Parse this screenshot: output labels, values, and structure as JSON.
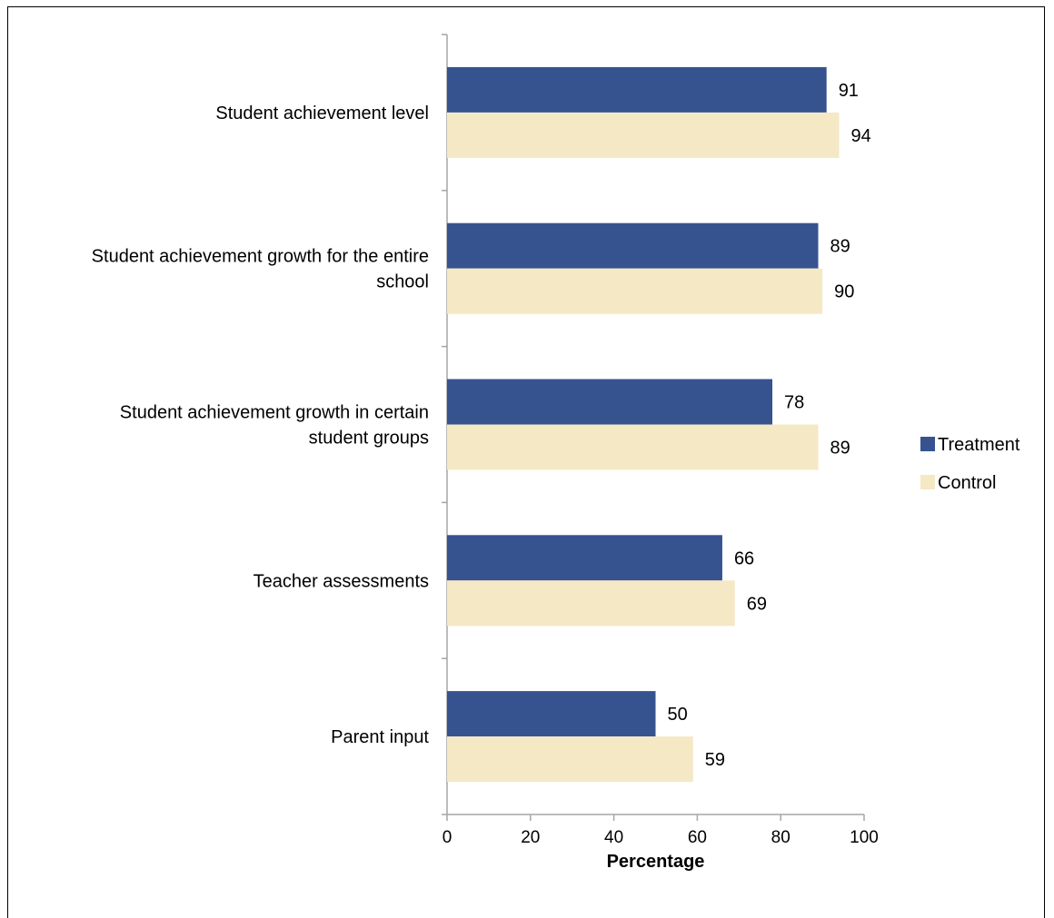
{
  "chart_data": {
    "type": "bar",
    "orientation": "horizontal",
    "categories": [
      [
        "Student achievement level"
      ],
      [
        "Student achievement growth for the entire",
        "school"
      ],
      [
        "Student achievement growth in certain",
        "student groups"
      ],
      [
        "Teacher assessments"
      ],
      [
        "Parent input"
      ]
    ],
    "series": [
      {
        "name": "Treatment",
        "color": "#36538f",
        "values": [
          91,
          89,
          78,
          66,
          50
        ]
      },
      {
        "name": "Control",
        "color": "#f5e8c4",
        "values": [
          94,
          90,
          89,
          69,
          59
        ]
      }
    ],
    "xlabel": "Percentage",
    "xlim": [
      0,
      100
    ],
    "xticks": [
      0,
      20,
      40,
      60,
      80,
      100
    ],
    "grid": false,
    "legend_position": "right"
  }
}
